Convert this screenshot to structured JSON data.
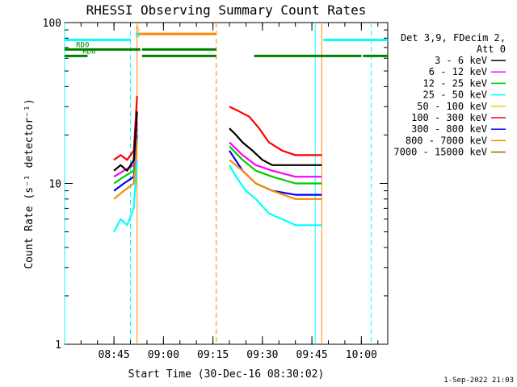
{
  "chart_data": {
    "type": "line",
    "title": "RHESSI Observing Summary Count Rates",
    "xlabel": "Start Time (30-Dec-16 08:30:02)",
    "ylabel": "Count Rate (s⁻¹ detector⁻¹)",
    "yscale": "log",
    "ylim": [
      1,
      100
    ],
    "xlim": [
      "08:30:02",
      "10:08:00"
    ],
    "x_ticks": [
      "08:45",
      "09:00",
      "09:15",
      "09:30",
      "09:45",
      "10:00"
    ],
    "y_ticks": [
      "1",
      "10",
      "100"
    ],
    "legend_header": [
      "Det 3,9, FDecim 2,",
      "Att 0"
    ],
    "legend_placement": "right",
    "series": [
      {
        "name": "3 - 6 keV",
        "color": "#000000",
        "segments": [
          {
            "x": [
              "08:45",
              "08:47",
              "08:49",
              "08:51",
              "08:52"
            ],
            "y": [
              12,
              13,
              12,
              14,
              28
            ]
          },
          {
            "x": [
              "09:20",
              "09:22",
              "09:24",
              "09:27",
              "09:30",
              "09:33",
              "09:36",
              "09:40",
              "09:44",
              "09:48"
            ],
            "y": [
              22,
              20,
              18,
              16,
              14,
              13,
              13,
              13,
              13,
              13
            ]
          }
        ]
      },
      {
        "name": "6 - 12 keV",
        "color": "#ff00ff",
        "segments": [
          {
            "x": [
              "08:45",
              "08:48",
              "08:51",
              "08:52"
            ],
            "y": [
              11,
              12,
              13,
              24
            ]
          },
          {
            "x": [
              "09:20",
              "09:24",
              "09:28",
              "09:33",
              "09:40",
              "09:48"
            ],
            "y": [
              18,
              15,
              13,
              12,
              11,
              11
            ]
          }
        ]
      },
      {
        "name": "12 - 25 keV",
        "color": "#00cc00",
        "segments": [
          {
            "x": [
              "08:45",
              "08:48",
              "08:51",
              "08:52"
            ],
            "y": [
              10,
              11,
              12,
              22
            ]
          },
          {
            "x": [
              "09:20",
              "09:24",
              "09:28",
              "09:33",
              "09:40",
              "09:48"
            ],
            "y": [
              17,
              14,
              12,
              11,
              10,
              10
            ]
          }
        ]
      },
      {
        "name": "25 - 50 keV",
        "color": "#00ffff",
        "segments": [
          {
            "x": [
              "08:45",
              "08:47",
              "08:49",
              "08:51",
              "08:52"
            ],
            "y": [
              5,
              6,
              5.5,
              7,
              14
            ]
          },
          {
            "x": [
              "09:20",
              "09:22",
              "09:25",
              "09:28",
              "09:32",
              "09:36",
              "09:40",
              "09:44",
              "09:48"
            ],
            "y": [
              13,
              11,
              9,
              8,
              6.5,
              6,
              5.5,
              5.5,
              5.5
            ]
          }
        ]
      },
      {
        "name": "50 - 100 keV",
        "color": "#ffcc00",
        "segments": []
      },
      {
        "name": "100 - 300 keV",
        "color": "#ff0000",
        "segments": [
          {
            "x": [
              "08:45",
              "08:47",
              "08:49",
              "08:51",
              "08:52"
            ],
            "y": [
              14,
              15,
              14,
              16,
              35
            ]
          },
          {
            "x": [
              "09:20",
              "09:23",
              "09:26",
              "09:29",
              "09:32",
              "09:36",
              "09:40",
              "09:44",
              "09:48"
            ],
            "y": [
              30,
              28,
              26,
              22,
              18,
              16,
              15,
              15,
              15
            ]
          }
        ]
      },
      {
        "name": "300 - 800 keV",
        "color": "#0000ff",
        "segments": [
          {
            "x": [
              "08:45",
              "08:48",
              "08:51",
              "08:52"
            ],
            "y": [
              9,
              10,
              11,
              20
            ]
          },
          {
            "x": [
              "09:20",
              "09:24",
              "09:28",
              "09:33",
              "09:40",
              "09:48"
            ],
            "y": [
              16,
              12,
              10,
              9,
              8.5,
              8.5
            ]
          }
        ]
      },
      {
        "name": "800 - 7000 keV",
        "color": "#ff8800",
        "segments": [
          {
            "x": [
              "08:45",
              "08:48",
              "08:51",
              "08:52"
            ],
            "y": [
              8,
              9,
              10,
              19
            ]
          },
          {
            "x": [
              "09:20",
              "09:24",
              "09:28",
              "09:33",
              "09:40",
              "09:48"
            ],
            "y": [
              14,
              12,
              10,
              9,
              8,
              8
            ]
          }
        ]
      },
      {
        "name": "7000 - 15000 keV",
        "color": "#996600",
        "segments": []
      }
    ],
    "flags": [
      {
        "label": "RD0",
        "color": "#008000",
        "y": 68,
        "label_at": "08:33",
        "ranges": [
          [
            "08:30:02",
            "08:53"
          ],
          [
            "08:53",
            "09:16"
          ]
        ]
      },
      {
        "label": "RD6",
        "color": "#008000",
        "y": 62,
        "label_at": "08:35",
        "ranges": [
          [
            "08:30:02",
            "08:37"
          ],
          [
            "08:53",
            "09:16"
          ],
          [
            "09:27",
            "10:00"
          ],
          [
            "10:00",
            "10:08"
          ]
        ]
      },
      {
        "label": "S",
        "color": "#ff8800",
        "y": 85,
        "label_at": "08:51",
        "ranges": [
          [
            "08:52",
            "09:16"
          ]
        ]
      },
      {
        "label": "N",
        "color": "#00ffff",
        "y": 78,
        "label_at": "08:51",
        "ranges": [
          [
            "08:30:02",
            "08:50"
          ],
          [
            "09:48",
            "10:08"
          ]
        ]
      }
    ],
    "vlines": [
      {
        "x": "08:30:02",
        "color": "#00ffff",
        "style": "solid"
      },
      {
        "x": "08:50",
        "color": "#00ffff",
        "style": "dashed"
      },
      {
        "x": "08:52",
        "color": "#ff8800",
        "style": "solid"
      },
      {
        "x": "09:16",
        "color": "#ff8800",
        "style": "dashed"
      },
      {
        "x": "09:46",
        "color": "#00ffff",
        "style": "solid"
      },
      {
        "x": "09:48",
        "color": "#ff8800",
        "style": "solid"
      },
      {
        "x": "10:03",
        "color": "#00ffff",
        "style": "dashed"
      }
    ]
  },
  "timestamp": "1-Sep-2022 21:03"
}
